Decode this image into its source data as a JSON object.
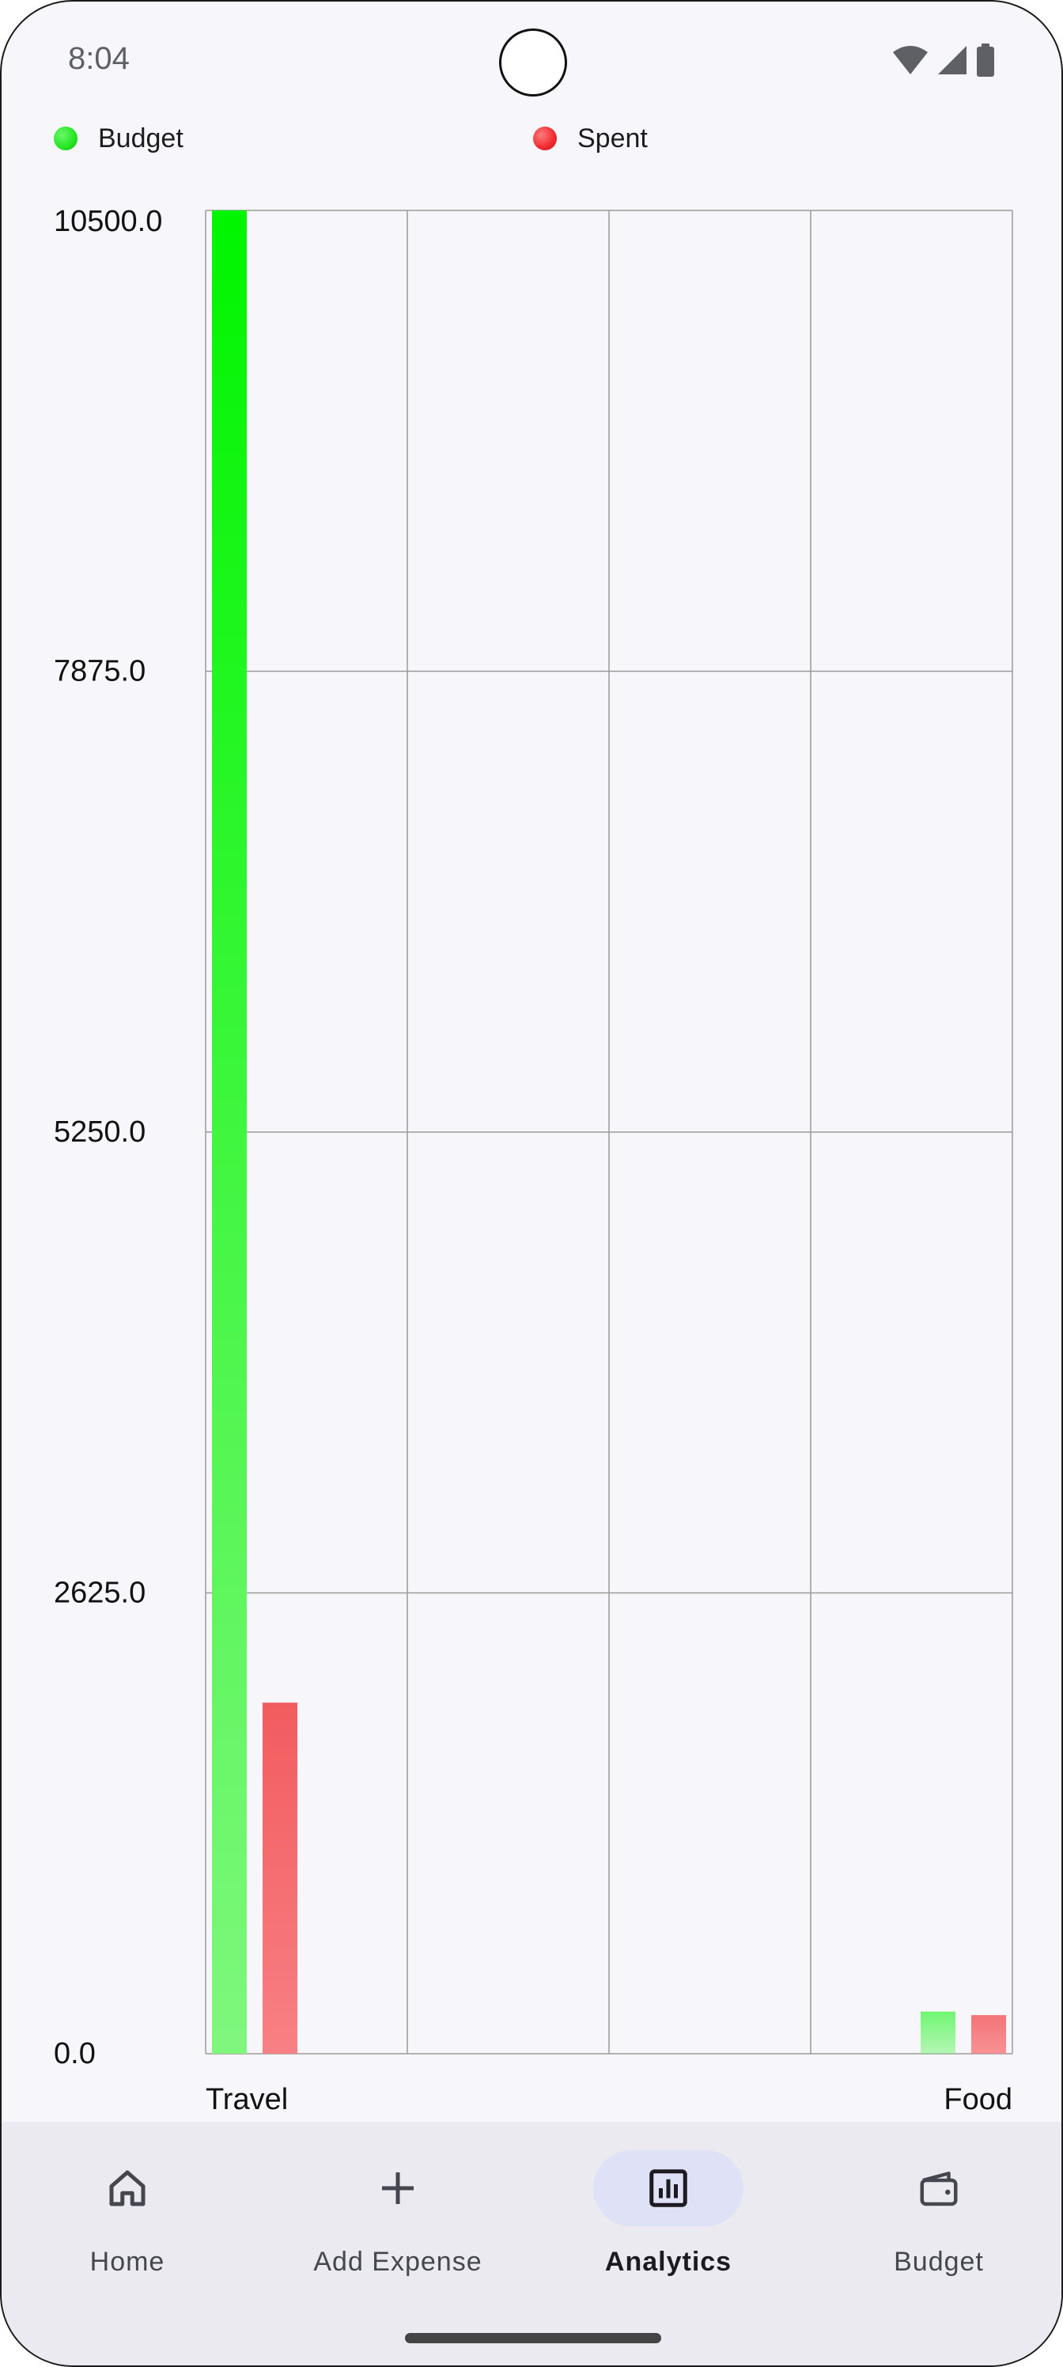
{
  "status_bar": {
    "time": "8:04"
  },
  "legend": [
    {
      "label": "Budget",
      "color": "#22e61f"
    },
    {
      "label": "Spent",
      "color": "#f02a2f"
    }
  ],
  "chart_data": {
    "type": "bar",
    "categories": [
      "Travel",
      "Food"
    ],
    "series": [
      {
        "name": "Budget",
        "values": [
          10500,
          240
        ],
        "color": "#22e61f"
      },
      {
        "name": "Spent",
        "values": [
          2000,
          220
        ],
        "color": "#f05a5f"
      }
    ],
    "y_ticks": [
      "0.0",
      "2625.0",
      "5250.0",
      "7875.0",
      "10500.0"
    ],
    "ylim": [
      0,
      10500
    ],
    "grid": true,
    "legend_position": "top"
  },
  "nav": {
    "items": [
      {
        "label": "Home",
        "icon": "home-icon",
        "active": false
      },
      {
        "label": "Add Expense",
        "icon": "plus-icon",
        "active": false
      },
      {
        "label": "Analytics",
        "icon": "analytics-icon",
        "active": true
      },
      {
        "label": "Budget",
        "icon": "wallet-icon",
        "active": false
      }
    ]
  }
}
